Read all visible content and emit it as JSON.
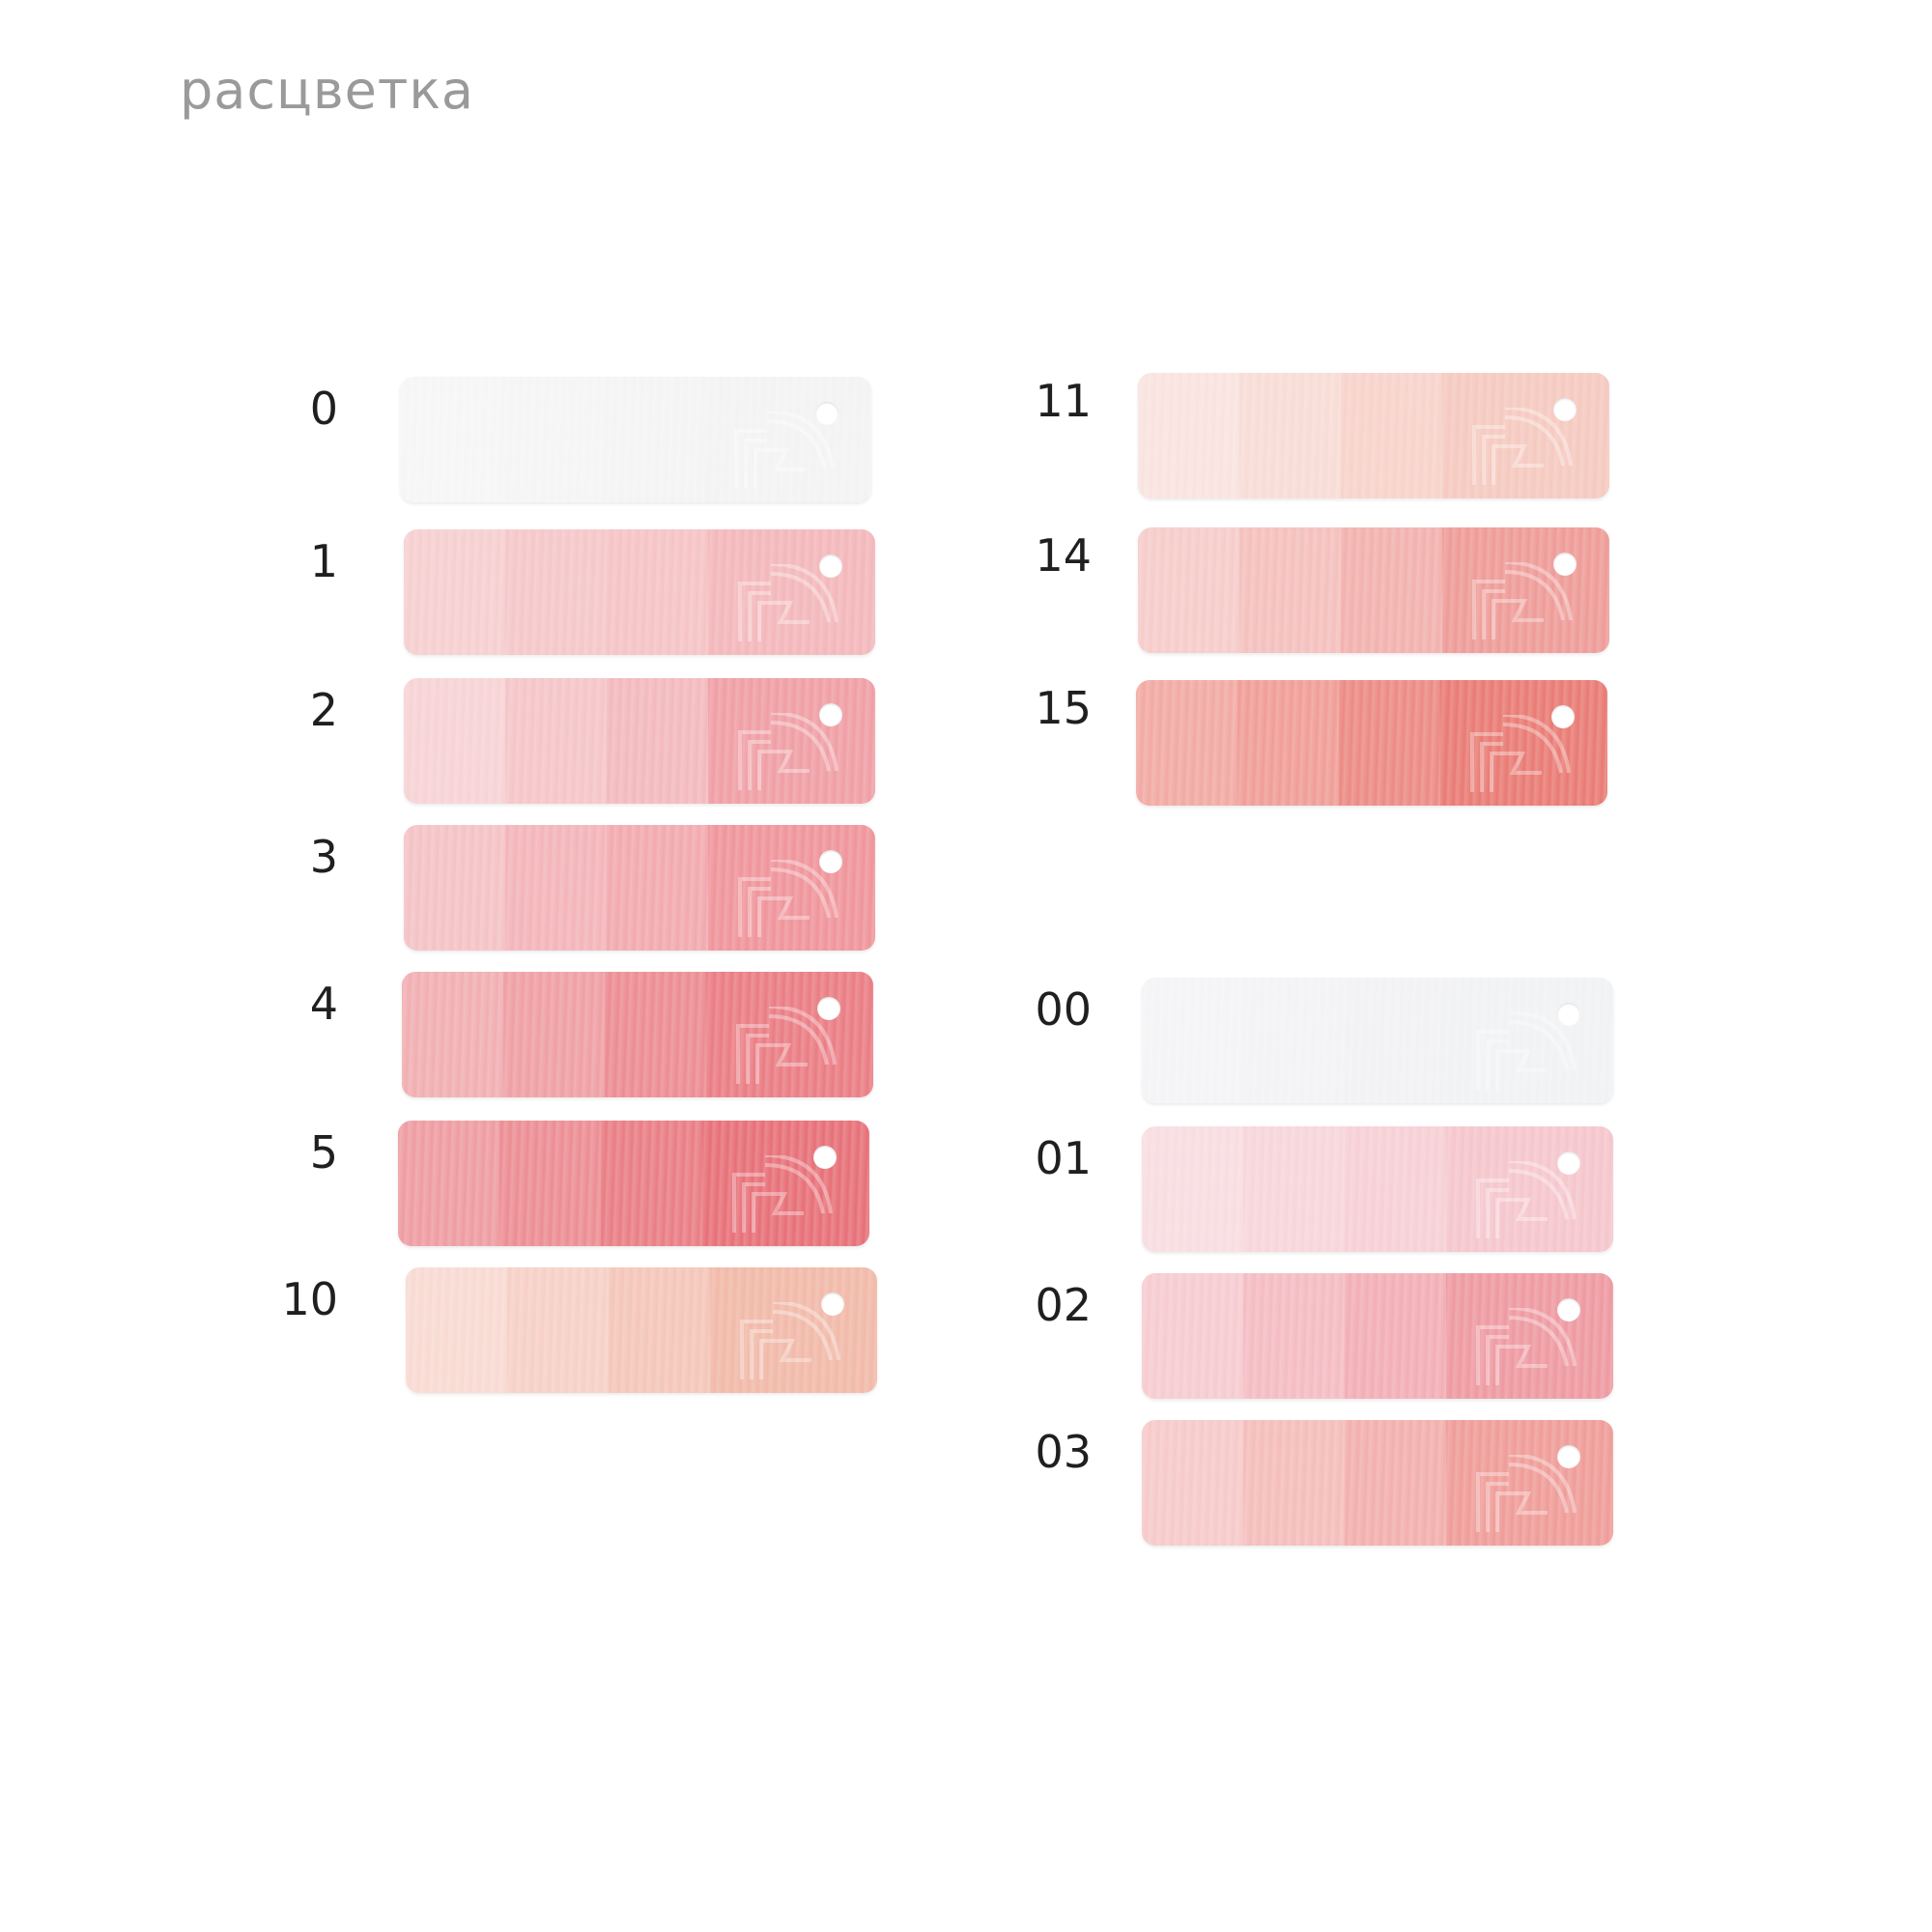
{
  "heading": "расцветка",
  "swatches": [
    {
      "label": "0",
      "colors": [
        "#f6f6f7",
        "#f5f5f6",
        "#f4f4f5",
        "#f3f3f4"
      ]
    },
    {
      "label": "1",
      "colors": [
        "#f6cfd0",
        "#f5c7c9",
        "#f5c3c5",
        "#f3b7ba"
      ]
    },
    {
      "label": "2",
      "colors": [
        "#f7d3d5",
        "#f5c5c8",
        "#f3b9bd",
        "#ef9ea4"
      ]
    },
    {
      "label": "3",
      "colors": [
        "#f4c2c5",
        "#f3b4b9",
        "#f2a9ae",
        "#ef949a"
      ]
    },
    {
      "label": "4",
      "colors": [
        "#f1aeb2",
        "#ef9fa4",
        "#ec8c92",
        "#ea7c83"
      ]
    },
    {
      "label": "5",
      "colors": [
        "#ee9ca1",
        "#ec8d93",
        "#e97d84",
        "#e76f77"
      ]
    },
    {
      "label": "10",
      "colors": [
        "#f8dad2",
        "#f6d0c6",
        "#f4c6b9",
        "#f1b9a8"
      ]
    },
    {
      "label": "11",
      "colors": [
        "#f9e3df",
        "#f8dcd6",
        "#f7d3cb",
        "#f5c9bf"
      ]
    },
    {
      "label": "14",
      "colors": [
        "#f6ccca",
        "#f4c0bd",
        "#f2b1ad",
        "#ee9b97"
      ]
    },
    {
      "label": "15",
      "colors": [
        "#f2a9a3",
        "#f09d96",
        "#ec8a83",
        "#e97a73"
      ]
    },
    {
      "label": "00",
      "colors": [
        "#f4f4f6",
        "#f3f3f5",
        "#f2f2f4",
        "#f1f2f4"
      ]
    },
    {
      "label": "01",
      "colors": [
        "#f8dde1",
        "#f7d6db",
        "#f6d0d5",
        "#f5c6cc"
      ]
    },
    {
      "label": "02",
      "colors": [
        "#f6cbd0",
        "#f4bcc2",
        "#f2aeb5",
        "#ee99a1"
      ]
    },
    {
      "label": "03",
      "colors": [
        "#f6cac9",
        "#f4bdbb",
        "#f2afac",
        "#ef9c98"
      ]
    }
  ]
}
